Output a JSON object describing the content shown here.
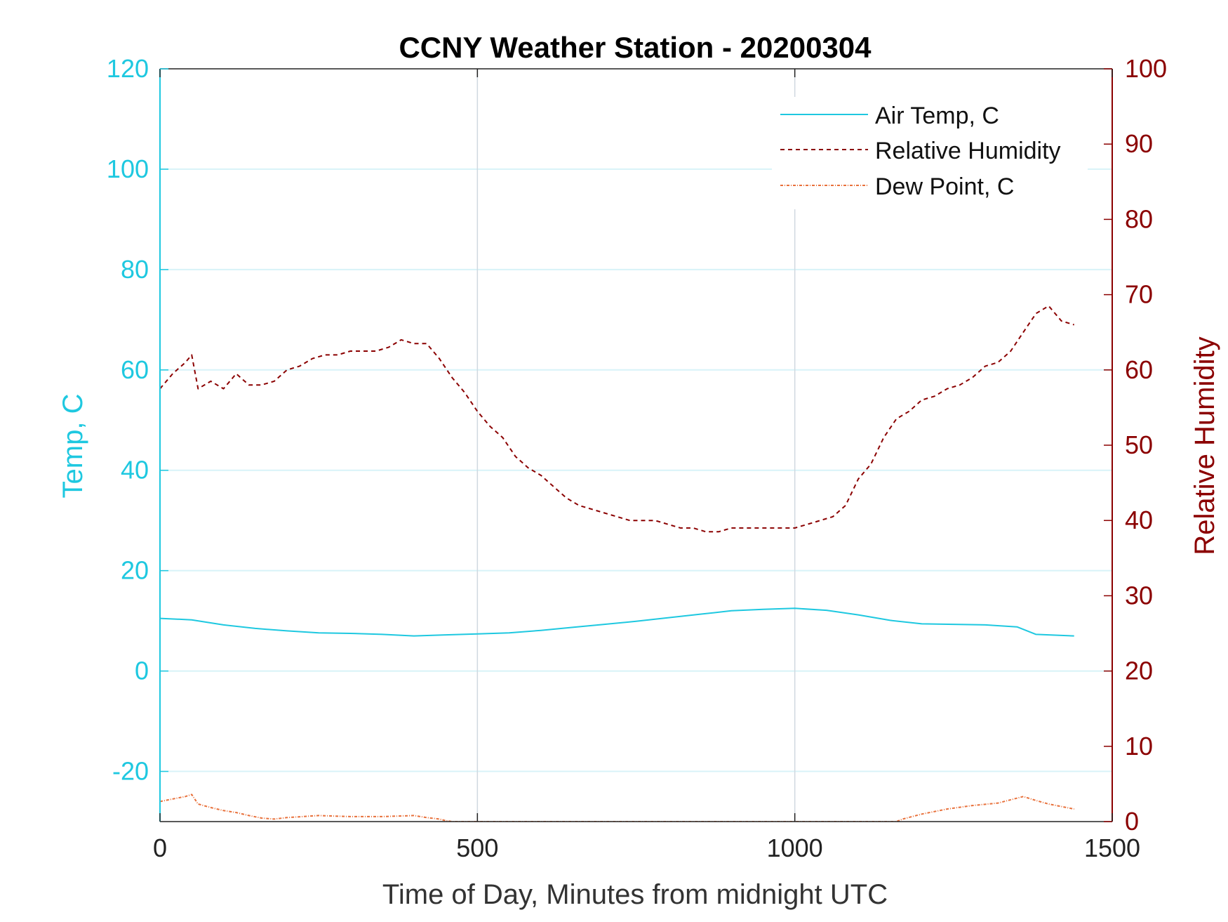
{
  "chart_data": {
    "type": "line",
    "title": "CCNY Weather Station - 20200304",
    "xlabel": "Time of Day, Minutes from midnight UTC",
    "ylabel_left": "Temp, C",
    "ylabel_right": "Relative Humidity",
    "xlim": [
      0,
      1500
    ],
    "ylim_left": [
      -30,
      120
    ],
    "ylim_right": [
      0,
      100
    ],
    "x_ticks": [
      0,
      500,
      1000,
      1500
    ],
    "y_ticks_left": [
      -20,
      0,
      20,
      40,
      60,
      80,
      100,
      120
    ],
    "y_ticks_right": [
      0,
      10,
      20,
      30,
      40,
      50,
      60,
      70,
      80,
      90,
      100
    ],
    "grid": true,
    "legend_position": "top-right",
    "colors": {
      "left_axis": "#1ec8e0",
      "right_axis": "#8b0000",
      "air_temp": "#1ec8e0",
      "relative_humidity": "#8b0000",
      "dew_point": "#e8703a",
      "grid_h": "#d8f3f8",
      "grid_v": "#d0d8e0"
    },
    "series": [
      {
        "name": "Air Temp, C",
        "axis": "left",
        "style": "solid",
        "x": [
          0,
          50,
          100,
          150,
          200,
          250,
          300,
          350,
          400,
          450,
          500,
          550,
          600,
          650,
          700,
          750,
          800,
          850,
          900,
          950,
          1000,
          1050,
          1100,
          1150,
          1200,
          1250,
          1300,
          1350,
          1380,
          1400,
          1440
        ],
        "y": [
          10.5,
          10.2,
          9.2,
          8.5,
          8.0,
          7.6,
          7.5,
          7.3,
          7.0,
          7.2,
          7.4,
          7.6,
          8.1,
          8.7,
          9.3,
          9.9,
          10.6,
          11.3,
          12.0,
          12.3,
          12.5,
          12.1,
          11.2,
          10.1,
          9.4,
          9.3,
          9.2,
          8.8,
          7.3,
          7.2,
          7.0
        ]
      },
      {
        "name": "Relative Humidity",
        "axis": "right",
        "style": "dashed",
        "x": [
          0,
          20,
          40,
          50,
          60,
          80,
          100,
          120,
          140,
          160,
          180,
          200,
          220,
          240,
          260,
          280,
          300,
          320,
          340,
          360,
          380,
          400,
          420,
          440,
          460,
          480,
          500,
          520,
          540,
          560,
          580,
          600,
          620,
          640,
          660,
          680,
          700,
          720,
          740,
          760,
          780,
          800,
          820,
          840,
          860,
          880,
          900,
          920,
          940,
          960,
          980,
          1000,
          1020,
          1040,
          1060,
          1080,
          1100,
          1120,
          1140,
          1160,
          1180,
          1200,
          1220,
          1240,
          1260,
          1280,
          1300,
          1320,
          1340,
          1360,
          1380,
          1400,
          1420,
          1440
        ],
        "y": [
          57.5,
          59.5,
          61.0,
          62.0,
          57.5,
          58.5,
          57.5,
          59.5,
          58.0,
          58.0,
          58.5,
          60.0,
          60.5,
          61.5,
          62.0,
          62.0,
          62.5,
          62.5,
          62.5,
          63.0,
          64.0,
          63.5,
          63.5,
          61.5,
          59.0,
          57.0,
          54.5,
          52.5,
          51.0,
          48.5,
          47.0,
          46.0,
          44.5,
          43.0,
          42.0,
          41.5,
          41.0,
          40.5,
          40.0,
          40.0,
          40.0,
          39.5,
          39.0,
          39.0,
          38.5,
          38.5,
          39.0,
          39.0,
          39.0,
          39.0,
          39.0,
          39.0,
          39.5,
          40.0,
          40.5,
          42.0,
          45.5,
          47.5,
          51.0,
          53.5,
          54.5,
          56.0,
          56.5,
          57.5,
          58.0,
          59.0,
          60.5,
          61.0,
          62.5,
          65.0,
          67.5,
          68.5,
          66.5,
          66.0
        ]
      },
      {
        "name": "Dew Point, C",
        "axis": "left",
        "style": "dash-dot",
        "x": [
          0,
          20,
          40,
          50,
          60,
          80,
          100,
          120,
          140,
          160,
          180,
          200,
          250,
          300,
          350,
          400,
          420,
          440,
          450,
          460,
          1160,
          1170,
          1200,
          1240,
          1280,
          1320,
          1360,
          1380,
          1400,
          1440
        ],
        "y": [
          -26.0,
          -25.5,
          -25.0,
          -24.6,
          -26.5,
          -27.2,
          -27.8,
          -28.2,
          -28.8,
          -29.3,
          -29.5,
          -29.2,
          -28.8,
          -29.0,
          -29.0,
          -28.8,
          -29.2,
          -29.5,
          -29.8,
          -30.0,
          -30.0,
          -29.5,
          -28.5,
          -27.5,
          -26.8,
          -26.3,
          -25.0,
          -25.8,
          -26.5,
          -27.5
        ]
      }
    ]
  }
}
